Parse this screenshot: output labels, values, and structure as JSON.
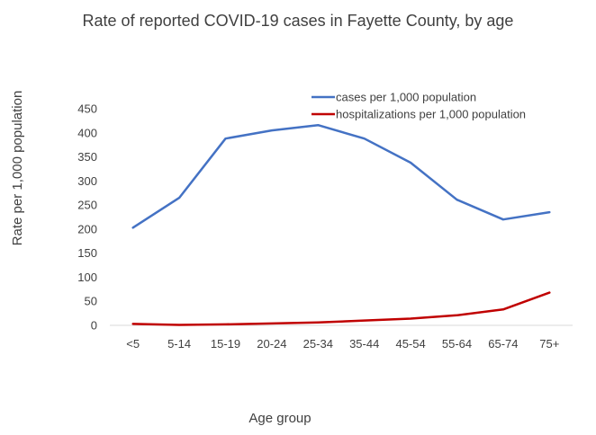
{
  "chart_data": {
    "type": "line",
    "title": "Rate of reported COVID-19 cases in Fayette County, by age",
    "xlabel": "Age group",
    "ylabel": "Rate per 1,000 population",
    "categories": [
      "<5",
      "5-14",
      "15-19",
      "20-24",
      "25-34",
      "35-44",
      "45-54",
      "55-64",
      "65-74",
      "75+"
    ],
    "ylim": [
      0,
      450
    ],
    "yticks": [
      "0",
      "50",
      "100",
      "150",
      "200",
      "250",
      "300",
      "350",
      "400",
      "450"
    ],
    "grid": false,
    "legend_position": "top-right",
    "series": [
      {
        "name": "cases per 1,000 population",
        "color": "#4472C4",
        "values": [
          203,
          265,
          388,
          405,
          416,
          388,
          338,
          261,
          220,
          235
        ]
      },
      {
        "name": "hospitalizations per 1,000 population",
        "color": "#C00000",
        "values": [
          3,
          1,
          2,
          4,
          6,
          10,
          14,
          21,
          33,
          68
        ]
      }
    ]
  }
}
